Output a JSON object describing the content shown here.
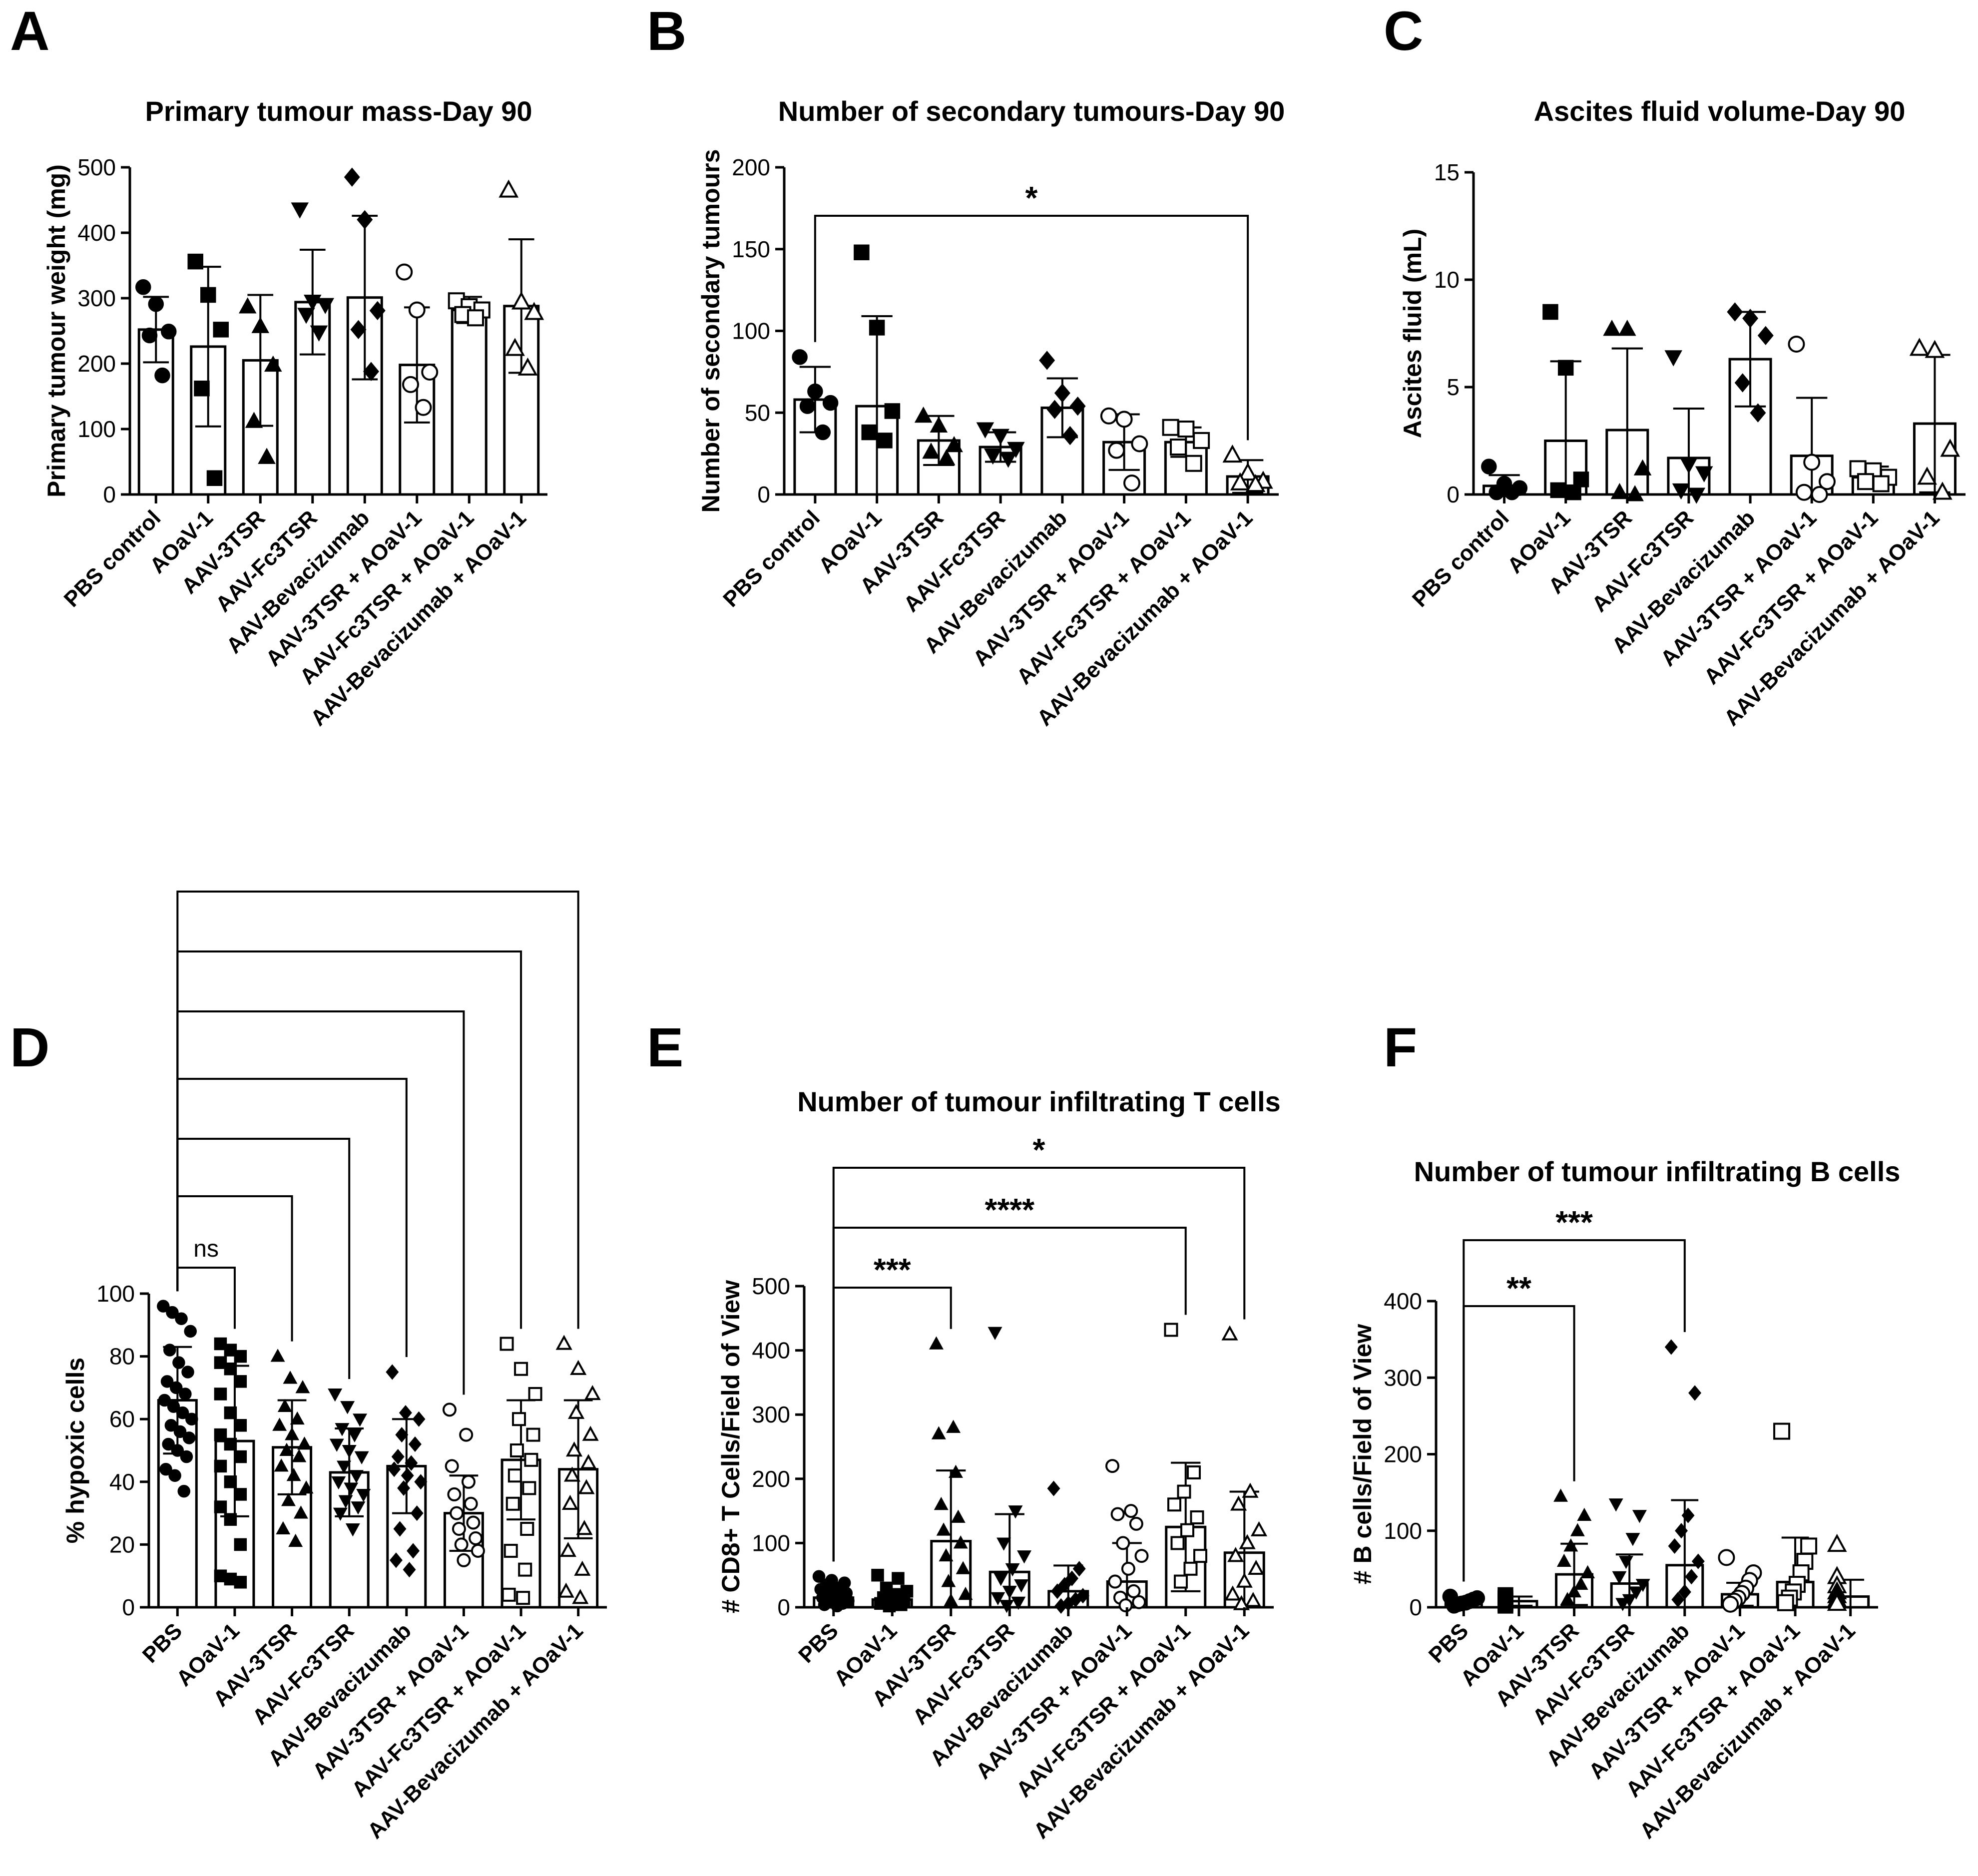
{
  "chart_data": [
    {
      "panel": "A",
      "type": "bar",
      "title": "Primary tumour mass-Day 90",
      "ylabel": "Primary tumour weight (mg)",
      "ylim": [
        0,
        500
      ],
      "yticks": [
        0,
        100,
        200,
        300,
        400,
        500
      ],
      "categories": [
        "PBS control",
        "AOaV-1",
        "AAV-3TSR",
        "AAV-Fc3TSR",
        "AAV-Bevacizumab",
        "AAV-3TSR + AOaV-1",
        "AAV-Fc3TSR + AOaV-1",
        "AAV-Bevacizumab + AOaV-1"
      ],
      "markers": [
        "circle",
        "square",
        "triangle",
        "triangle-down",
        "diamond",
        "circle-open",
        "square-open",
        "triangle-open"
      ],
      "means": [
        252,
        226,
        205,
        294,
        301,
        198,
        282,
        288
      ],
      "sd": [
        50,
        122,
        100,
        80,
        125,
        88,
        20,
        102
      ],
      "points": [
        [
          317,
          291,
          249,
          243,
          182
        ],
        [
          356,
          305,
          252,
          162,
          25
        ],
        [
          287,
          257,
          198,
          112,
          57
        ],
        [
          436,
          295,
          290,
          275,
          248
        ],
        [
          485,
          420,
          281,
          252,
          188
        ],
        [
          340,
          282,
          187,
          168,
          133
        ],
        [
          296,
          287,
          282,
          275,
          270
        ],
        [
          465,
          294,
          278,
          223,
          193
        ]
      ],
      "significance": []
    },
    {
      "panel": "B",
      "type": "bar",
      "title": "Number of secondary tumours-Day 90",
      "ylabel": "Number of secondary tumours",
      "ylim": [
        0,
        200
      ],
      "yticks": [
        0,
        50,
        100,
        150,
        200
      ],
      "categories": [
        "PBS control",
        "AOaV-1",
        "AAV-3TSR",
        "AAV-Fc3TSR",
        "AAV-Bevacizumab",
        "AAV-3TSR + AOaV-1",
        "AAV-Fc3TSR + AOaV-1",
        "AAV-Bevacizumab + AOaV-1"
      ],
      "markers": [
        "circle",
        "square",
        "triangle",
        "triangle-down",
        "diamond",
        "circle-open",
        "square-open",
        "triangle-open"
      ],
      "means": [
        58,
        54,
        33,
        29,
        53,
        32,
        32,
        11
      ],
      "sd": [
        20,
        55,
        15,
        9,
        18,
        17,
        9,
        10
      ],
      "points": [
        [
          84,
          63,
          56,
          54,
          38
        ],
        [
          148,
          102,
          51,
          38,
          33
        ],
        [
          48,
          42,
          30,
          26,
          22
        ],
        [
          40,
          36,
          28,
          24,
          22
        ],
        [
          82,
          62,
          54,
          52,
          36
        ],
        [
          48,
          46,
          31,
          27,
          7
        ],
        [
          41,
          40,
          33,
          29,
          19
        ],
        [
          24,
          13,
          8,
          7,
          6
        ]
      ],
      "significance": [
        {
          "from": 0,
          "to": 7,
          "label": "*"
        }
      ]
    },
    {
      "panel": "C",
      "type": "bar",
      "title": "Ascites fluid volume-Day 90",
      "ylabel": "Ascites fluid (mL)",
      "ylim": [
        0,
        15
      ],
      "yticks": [
        0,
        5,
        10,
        15
      ],
      "categories": [
        "PBS control",
        "AOaV-1",
        "AAV-3TSR",
        "AAV-Fc3TSR",
        "AAV-Bevacizumab",
        "AAV-3TSR + AOaV-1",
        "AAV-Fc3TSR + AOaV-1",
        "AAV-Bevacizumab + AOaV-1"
      ],
      "markers": [
        "circle",
        "square",
        "triangle",
        "triangle-down",
        "diamond",
        "circle-open",
        "square-open",
        "triangle-open"
      ],
      "means": [
        0.4,
        2.5,
        3.0,
        1.7,
        6.3,
        1.8,
        0.8,
        3.3
      ],
      "sd": [
        0.5,
        3.7,
        3.8,
        2.3,
        2.2,
        2.7,
        0.5,
        3.2
      ],
      "points": [
        [
          1.3,
          0.5,
          0.3,
          0.1,
          0.1
        ],
        [
          8.5,
          5.9,
          0.7,
          0.2,
          0.1
        ],
        [
          7.7,
          7.7,
          1.2,
          0.1,
          0.0
        ],
        [
          6.4,
          1.4,
          1.0,
          0.2,
          0.0
        ],
        [
          8.5,
          8.2,
          7.4,
          5.2,
          3.8
        ],
        [
          7.0,
          1.5,
          0.6,
          0.1,
          0.0
        ],
        [
          1.2,
          1.1,
          0.8,
          0.6,
          0.5
        ],
        [
          6.8,
          6.7,
          2.1,
          0.8,
          0.1
        ]
      ],
      "significance": []
    },
    {
      "panel": "D",
      "type": "bar",
      "title": "",
      "ylabel": "% hypoxic cells",
      "ylim": [
        0,
        100
      ],
      "yticks": [
        0,
        20,
        40,
        60,
        80,
        100
      ],
      "categories": [
        "PBS",
        "AOaV-1",
        "AAV-3TSR",
        "AAV-Fc3TSR",
        "AAV-Bevacizumab",
        "AAV-3TSR + AOaV-1",
        "AAV-Fc3TSR + AOaV-1",
        "AAV-Bevacizumab + AOaV-1"
      ],
      "markers": [
        "circle",
        "square",
        "triangle",
        "triangle-down",
        "diamond",
        "circle-open",
        "square-open",
        "triangle-open"
      ],
      "means": [
        66,
        53,
        51,
        43,
        45,
        30,
        47,
        44
      ],
      "sd": [
        17,
        24,
        15,
        14,
        15,
        12,
        19,
        22
      ],
      "points": [
        [
          96,
          94,
          92,
          88,
          82,
          78,
          75,
          72,
          70,
          68,
          66,
          64,
          62,
          60,
          58,
          56,
          54,
          52,
          50,
          48,
          44,
          42,
          37
        ],
        [
          84,
          82,
          80,
          78,
          76,
          72,
          68,
          62,
          58,
          55,
          52,
          48,
          45,
          40,
          36,
          32,
          28,
          20,
          10,
          9,
          8
        ],
        [
          80,
          73,
          70,
          64,
          60,
          58,
          55,
          52,
          50,
          48,
          45,
          42,
          38,
          34,
          30,
          25,
          21
        ],
        [
          68,
          64,
          60,
          57,
          55,
          52,
          50,
          48,
          45,
          42,
          40,
          38,
          36,
          34,
          32,
          30,
          25
        ],
        [
          75,
          62,
          60,
          55,
          52,
          48,
          46,
          44,
          42,
          40,
          38,
          30,
          25,
          18,
          15,
          12
        ],
        [
          63,
          55,
          45,
          40,
          36,
          33,
          30,
          27,
          25,
          22,
          20,
          18,
          15
        ],
        [
          84,
          76,
          68,
          60,
          55,
          50,
          47,
          42,
          38,
          33,
          25,
          18,
          12,
          4,
          3
        ],
        [
          84,
          76,
          68,
          62,
          55,
          50,
          46,
          42,
          38,
          33,
          25,
          18,
          12,
          5,
          3
        ]
      ],
      "significance": [
        {
          "from": 0,
          "to": 1,
          "label": "ns"
        },
        {
          "from": 0,
          "to": 2,
          "label": ""
        },
        {
          "from": 0,
          "to": 3,
          "label": ""
        },
        {
          "from": 0,
          "to": 4,
          "label": ""
        },
        {
          "from": 0,
          "to": 5,
          "label": ""
        },
        {
          "from": 0,
          "to": 6,
          "label": ""
        },
        {
          "from": 0,
          "to": 7,
          "label": ""
        }
      ]
    },
    {
      "panel": "E",
      "type": "bar",
      "title": "Number of tumour infiltrating T cells",
      "ylabel": "# CD8+ T Cells/Field of View",
      "ylim": [
        0,
        500
      ],
      "yticks": [
        0,
        100,
        200,
        300,
        400,
        500
      ],
      "categories": [
        "PBS",
        "AOaV-1",
        "AAV-3TSR",
        "AAV-Fc3TSR",
        "AAV-Bevacizumab",
        "AAV-3TSR + AOaV-1",
        "AAV-Fc3TSR + AOaV-1",
        "AAV-Bevacizumab + AOaV-1"
      ],
      "markers": [
        "circle",
        "square",
        "triangle",
        "triangle-down",
        "diamond",
        "circle-open",
        "square-open",
        "triangle-open"
      ],
      "means": [
        15,
        12,
        103,
        55,
        25,
        40,
        125,
        85
      ],
      "sd": [
        12,
        10,
        110,
        90,
        40,
        60,
        100,
        95
      ],
      "points": [
        [
          48,
          42,
          38,
          35,
          30,
          28,
          25,
          22,
          20,
          18,
          15,
          12,
          10,
          8,
          6,
          4,
          2
        ],
        [
          50,
          45,
          30,
          25,
          20,
          15,
          10,
          8,
          6,
          4,
          2
        ],
        [
          410,
          280,
          270,
          210,
          160,
          140,
          120,
          100,
          80,
          60,
          40,
          20,
          10
        ],
        [
          428,
          150,
          100,
          80,
          60,
          45,
          35,
          25,
          15,
          8,
          3
        ],
        [
          185,
          60,
          45,
          35,
          25,
          18,
          12,
          6,
          2
        ],
        [
          220,
          150,
          145,
          130,
          100,
          80,
          60,
          40,
          25,
          15,
          8,
          3
        ],
        [
          432,
          210,
          180,
          160,
          140,
          120,
          100,
          80,
          60,
          40
        ],
        [
          425,
          180,
          160,
          120,
          100,
          80,
          60,
          40,
          20,
          10,
          5
        ]
      ],
      "significance": [
        {
          "from": 0,
          "to": 2,
          "label": "***"
        },
        {
          "from": 0,
          "to": 6,
          "label": "****"
        },
        {
          "from": 0,
          "to": 7,
          "label": "*"
        }
      ]
    },
    {
      "panel": "F",
      "type": "bar",
      "title": "Number of tumour infiltrating B cells",
      "ylabel": "# B cells/Field of View",
      "ylim": [
        0,
        400
      ],
      "yticks": [
        0,
        100,
        200,
        300,
        400
      ],
      "categories": [
        "PBS",
        "AOaV-1",
        "AAV-3TSR",
        "AAV-Fc3TSR",
        "AAV-Bevacizumab",
        "AAV-3TSR + AOaV-1",
        "AAV-Fc3TSR + AOaV-1",
        "AAV-Bevacizumab + AOaV-1"
      ],
      "markers": [
        "circle",
        "square",
        "triangle",
        "triangle-down",
        "diamond",
        "circle-open",
        "square-open",
        "triangle-open"
      ],
      "means": [
        8,
        8,
        43,
        31,
        55,
        17,
        33,
        14
      ],
      "sd": [
        5,
        6,
        40,
        38,
        85,
        15,
        58,
        22
      ],
      "points": [
        [
          14,
          12,
          10,
          8,
          6,
          5,
          4,
          2
        ],
        [
          16,
          12,
          10,
          8,
          6,
          4,
          2
        ],
        [
          145,
          120,
          100,
          80,
          60,
          45,
          30,
          20,
          10
        ],
        [
          135,
          120,
          90,
          60,
          40,
          30,
          20,
          10,
          5
        ],
        [
          340,
          280,
          120,
          100,
          80,
          60,
          40,
          20,
          10
        ],
        [
          65,
          45,
          35,
          25,
          18,
          12,
          8,
          4
        ],
        [
          230,
          80,
          60,
          45,
          30,
          20,
          12,
          6
        ],
        [
          82,
          40,
          28,
          20,
          15,
          10,
          5
        ]
      ],
      "significance": [
        {
          "from": 0,
          "to": 2,
          "label": "**"
        },
        {
          "from": 0,
          "to": 4,
          "label": "***"
        }
      ]
    }
  ]
}
